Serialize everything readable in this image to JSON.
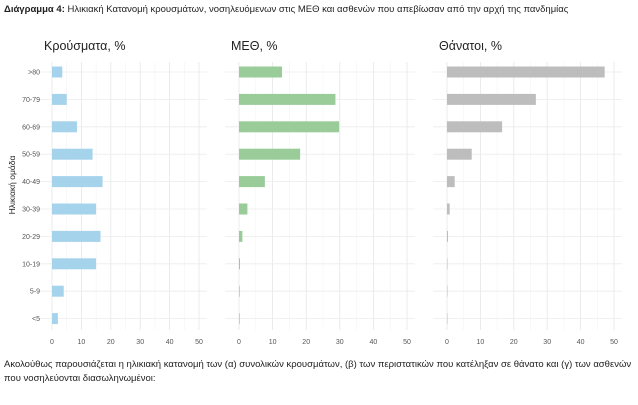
{
  "caption": {
    "label": "Διάγραμμα 4:",
    "text": "Ηλικιακή Κατανομή κρουσμάτων, νοσηλευόμενων στις ΜΕΘ και ασθενών που απεβίωσαν από την αρχή της πανδημίας"
  },
  "footer": "Ακολούθως παρουσιάζεται η ηλικιακή κατανομή των (α) συνολικών κρουσμάτων, (β) των περιστατικών που κατέληξαν σε θάνατο και (γ) των ασθενών που νοσηλεύονται διασωληνωμένοι:",
  "chart_data": {
    "type": "bar",
    "orientation": "horizontal",
    "ylabel": "Ηλικιακή ομάδα",
    "categories": [
      ">80",
      "70-79",
      "60-69",
      "50-59",
      "40-49",
      "30-39",
      "20-29",
      "10-19",
      "5-9",
      "<5"
    ],
    "xlim": [
      0,
      50
    ],
    "xticks": [
      0,
      10,
      20,
      30,
      40,
      50
    ],
    "grid": true,
    "series": [
      {
        "name": "Κρούσματα, %",
        "color": "#a6d3ec",
        "values": [
          3.5,
          5.0,
          8.5,
          13.8,
          17.2,
          15.0,
          16.5,
          15.0,
          4.0,
          2.0
        ]
      },
      {
        "name": "ΜΕΘ, %",
        "color": "#99cc99",
        "values": [
          12.8,
          28.7,
          29.8,
          18.2,
          7.7,
          2.5,
          1.0,
          0.3,
          0.2,
          0.2
        ]
      },
      {
        "name": "Θάνατοι, %",
        "color": "#bdbdbd",
        "values": [
          47.2,
          26.6,
          16.5,
          7.4,
          2.3,
          0.8,
          0.3,
          0.1,
          0.0,
          0.1
        ]
      }
    ]
  }
}
